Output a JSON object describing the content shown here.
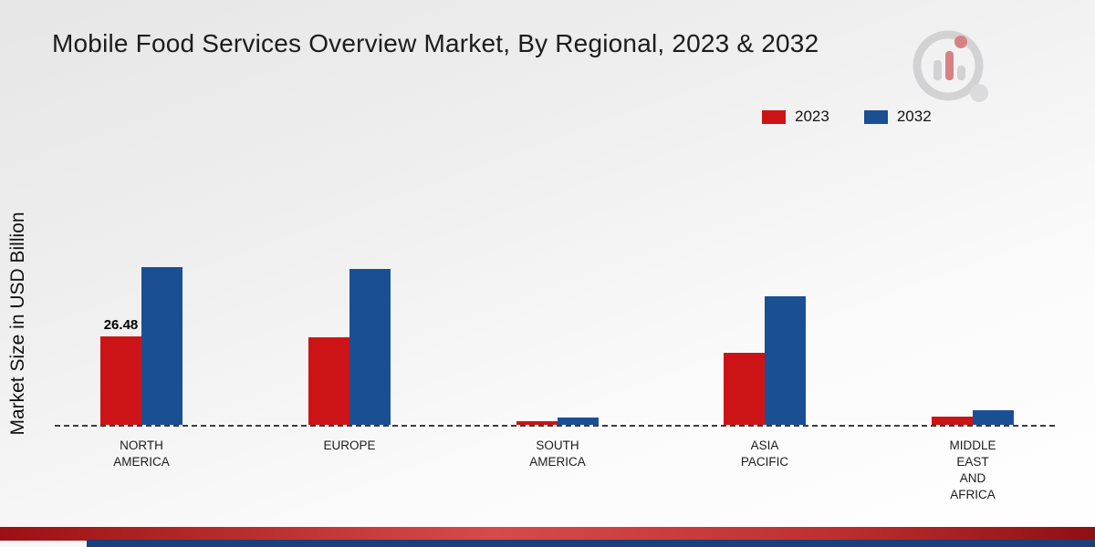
{
  "title": "Mobile Food Services Overview Market, By Regional, 2023 & 2032",
  "ylabel": "Market Size in USD Billion",
  "logo_name": "market-research-future-logo",
  "colors": {
    "series_2023": "#cc1417",
    "series_2032": "#1b4f93",
    "baseline": "#3d3d3d",
    "bottom_strip_red": "#b01217",
    "bottom_strip_blue": "#1b3f7a"
  },
  "legend": {
    "label_2023": "2023",
    "label_2032": "2032",
    "position": "top-right"
  },
  "chart_data": {
    "type": "bar",
    "title": "Mobile Food Services Overview Market, By Regional, 2023 & 2032",
    "xlabel": "",
    "ylabel": "Market Size in USD Billion",
    "categories": [
      "NORTH AMERICA",
      "EUROPE",
      "SOUTH AMERICA",
      "ASIA PACIFIC",
      "MIDDLE EAST AND AFRICA"
    ],
    "category_lines": [
      [
        "NORTH",
        "AMERICA"
      ],
      [
        "EUROPE"
      ],
      [
        "SOUTH",
        "AMERICA"
      ],
      [
        "ASIA",
        "PACIFIC"
      ],
      [
        "MIDDLE",
        "EAST",
        "AND",
        "AFRICA"
      ]
    ],
    "series": [
      {
        "name": "2023",
        "color": "#cc1417",
        "values": [
          26.48,
          26.1,
          1.2,
          21.5,
          2.4
        ]
      },
      {
        "name": "2032",
        "color": "#1b4f93",
        "values": [
          47.2,
          46.8,
          2.3,
          38.6,
          4.3
        ]
      }
    ],
    "data_labels": [
      {
        "series": "2023",
        "category": "NORTH AMERICA",
        "text": "26.48"
      }
    ],
    "ylim": [
      0,
      50
    ],
    "grid": false,
    "baseline_style": "dashed",
    "legend_position": "top-right"
  }
}
